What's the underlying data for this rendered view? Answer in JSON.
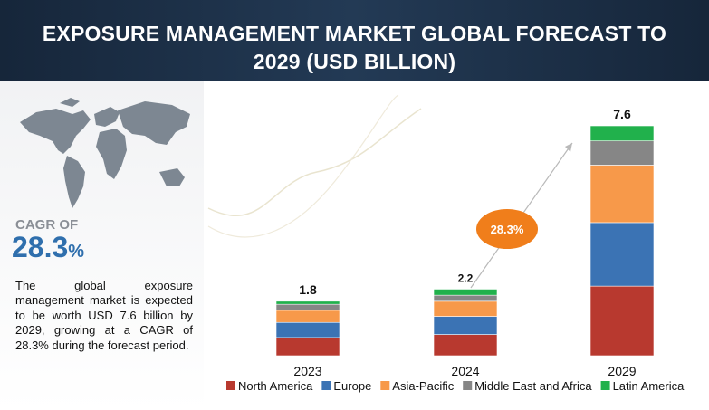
{
  "header": {
    "title": "EXPOSURE MANAGEMENT MARKET GLOBAL FORECAST TO 2029 (USD BILLION)"
  },
  "sidebar": {
    "cagr_label": "CAGR OF",
    "cagr_value": "28.3",
    "cagr_unit": "%",
    "description": "The global exposure management market is expected to be worth USD 7.6 billion by 2029, growing at a CAGR of 28.3% during the forecast period."
  },
  "chart_data": {
    "type": "stacked_bar",
    "categories": [
      "2023",
      "2024",
      "2029"
    ],
    "series": [
      {
        "name": "North America",
        "color": "#b8392f",
        "values": [
          0.6,
          0.7,
          2.3
        ]
      },
      {
        "name": "Europe",
        "color": "#3b73b4",
        "values": [
          0.5,
          0.6,
          2.1
        ]
      },
      {
        "name": "Asia-Pacific",
        "color": "#f7994a",
        "values": [
          0.4,
          0.5,
          1.9
        ]
      },
      {
        "name": "Middle East and Africa",
        "color": "#868686",
        "values": [
          0.2,
          0.2,
          0.8
        ]
      },
      {
        "name": "Latin America",
        "color": "#21b14c",
        "values": [
          0.1,
          0.2,
          0.5
        ]
      }
    ],
    "totals": [
      1.8,
      2.2,
      7.6
    ],
    "annotation": "28.3%",
    "legend": "bottom"
  }
}
